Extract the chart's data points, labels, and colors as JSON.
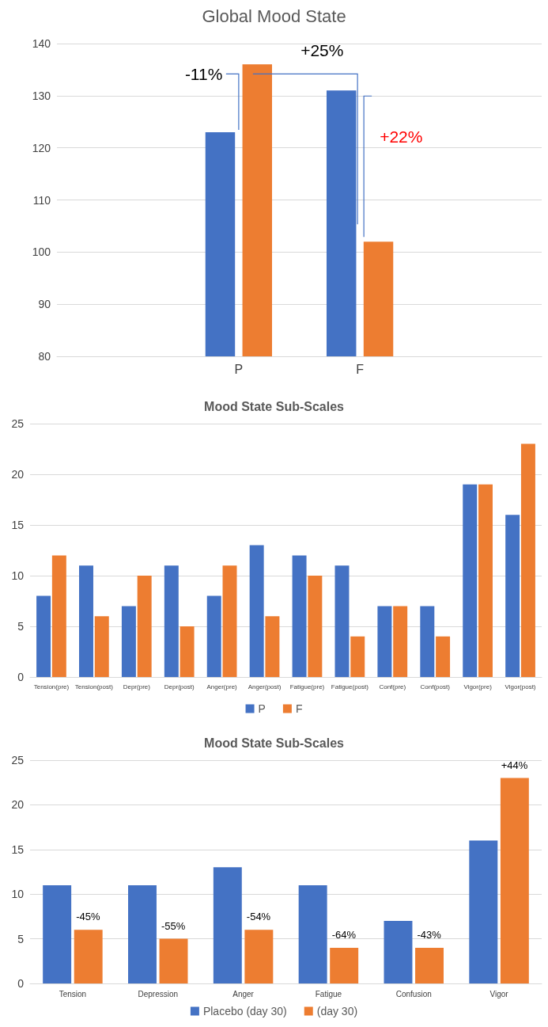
{
  "chart_data": [
    {
      "type": "bar",
      "title": "Global Mood State",
      "categories": [
        null,
        "P",
        "F",
        null
      ],
      "series": [
        {
          "color": "#4472c4",
          "values": [
            80,
            123,
            131,
            null
          ]
        },
        {
          "color": "#ed7d31",
          "values": [
            80,
            136,
            102,
            null
          ]
        }
      ],
      "ylim": [
        80,
        140
      ],
      "yticks": [
        80,
        90,
        100,
        110,
        120,
        130,
        140
      ],
      "grid": "y",
      "legend": false,
      "annotations": [
        "-11%",
        "+25%",
        "+22%"
      ]
    },
    {
      "type": "bar",
      "title": "Mood State Sub-Scales",
      "categories": [
        "Tension(pre)",
        "Tension(post)",
        "Depr(pre)",
        "Depr(post)",
        "Anger(pre)",
        "Anger(post)",
        "Fatigue(pre)",
        "Fatigue(post)",
        "Conf(pre)",
        "Conf(post)",
        "Vigor(pre)",
        "Vigor(post)"
      ],
      "series": [
        {
          "name": "P",
          "color": "#4472c4",
          "values": [
            8,
            11,
            7,
            11,
            8,
            13,
            12,
            11,
            7,
            7,
            19,
            16
          ]
        },
        {
          "name": "F",
          "color": "#ed7d31",
          "values": [
            12,
            6,
            10,
            5,
            11,
            6,
            10,
            4,
            7,
            4,
            19,
            23
          ]
        }
      ],
      "ylim": [
        0,
        25
      ],
      "yticks": [
        0,
        5,
        10,
        15,
        20,
        25
      ],
      "grid": "y",
      "legend": "bottom"
    },
    {
      "type": "bar",
      "title": "Mood State Sub-Scales",
      "categories": [
        "Tension",
        "Depression",
        "Anger",
        "Fatigue",
        "Confusion",
        "Vigor"
      ],
      "series": [
        {
          "name": "Placebo (day 30)",
          "color": "#4472c4",
          "values": [
            11,
            11,
            13,
            11,
            7,
            16
          ]
        },
        {
          "name": "(day 30)",
          "color": "#ed7d31",
          "values": [
            6,
            5,
            6,
            4,
            4,
            23
          ]
        }
      ],
      "annotations": [
        {
          "text": "-45%",
          "x": "Tension",
          "y": 6
        },
        {
          "text": "-55%",
          "x": "Depression",
          "y": 5
        },
        {
          "text": "-54%",
          "x": "Anger",
          "y": 6
        },
        {
          "text": "-64%",
          "x": "Fatigue",
          "y": 4
        },
        {
          "text": "-43%",
          "x": "Confusion",
          "y": 4
        },
        {
          "text": "+44%",
          "x": "Vigor",
          "y": 23
        }
      ],
      "ylim": [
        0,
        25
      ],
      "yticks": [
        0,
        5,
        10,
        15,
        20,
        25
      ],
      "grid": "y",
      "legend": "bottom"
    }
  ]
}
